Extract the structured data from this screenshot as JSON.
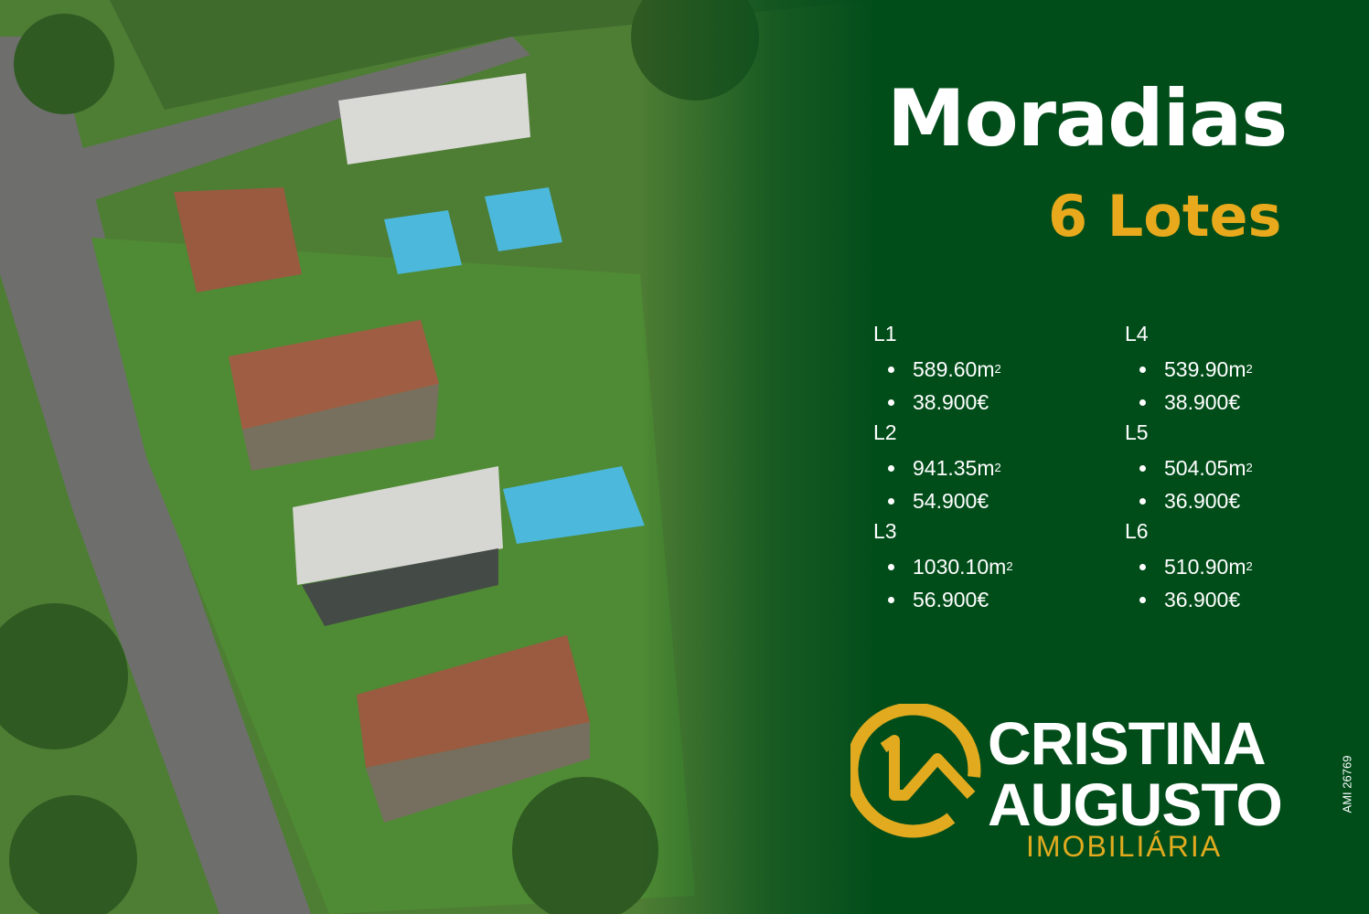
{
  "title": "Moradias",
  "subtitle": "6 Lotes",
  "lots_left": [
    {
      "name": "L1",
      "area": "589.60m",
      "price": "38.900€"
    },
    {
      "name": "L2",
      "area": "941.35m",
      "price": "54.900€"
    },
    {
      "name": "L3",
      "area": "1030.10m",
      "price": "56.900€"
    }
  ],
  "lots_right": [
    {
      "name": "L4",
      "area": "539.90m",
      "price": "38.900€"
    },
    {
      "name": "L5",
      "area": "504.05m",
      "price": "36.900€"
    },
    {
      "name": "L6",
      "area": "510.90m",
      "price": "36.900€"
    }
  ],
  "area_unit_superscript": "2",
  "brand": {
    "line1": "CRISTINA",
    "line2": "AUGUSTO",
    "line3": "IMOBILIÁRIA",
    "license": "AMI 26769"
  },
  "colors": {
    "background": "#014d1a",
    "accent": "#e8aa1c",
    "text": "#ffffff"
  }
}
